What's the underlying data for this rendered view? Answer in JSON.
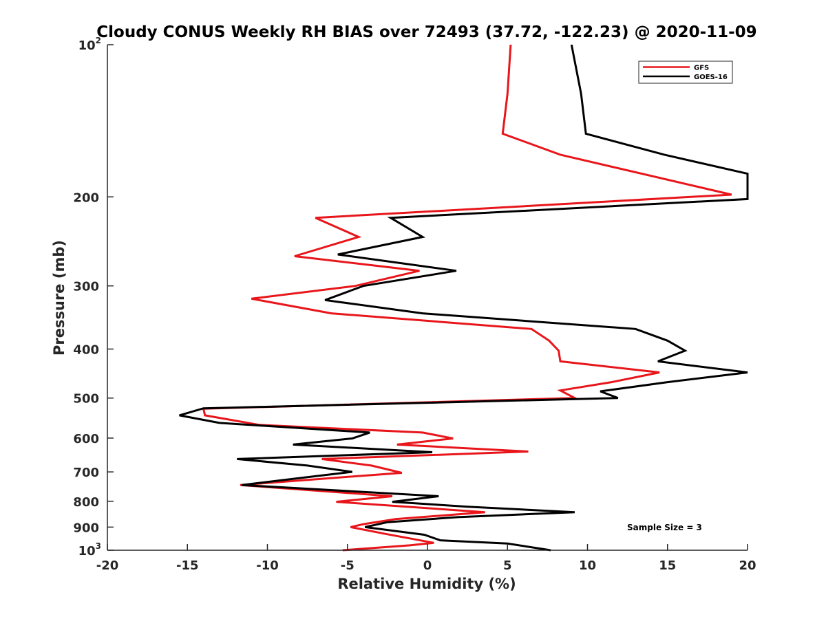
{
  "chart_data": {
    "type": "line",
    "title": "Cloudy CONUS Weekly RH BIAS over 72493 (37.72, -122.23) @ 2020-11-09",
    "xlabel": "Relative Humidity (%)",
    "ylabel": "Pressure (mb)",
    "xlim": [
      -20,
      20
    ],
    "ylim": [
      100,
      1000
    ],
    "y_scale": "log",
    "y_reversed": true,
    "grid": false,
    "legend_position": "top-right",
    "x_ticks": [
      {
        "value": -20,
        "label": "-20"
      },
      {
        "value": -15,
        "label": "-15"
      },
      {
        "value": -10,
        "label": "-10"
      },
      {
        "value": -5,
        "label": "-5"
      },
      {
        "value": 0,
        "label": "0"
      },
      {
        "value": 5,
        "label": "5"
      },
      {
        "value": 10,
        "label": "10"
      },
      {
        "value": 15,
        "label": "15"
      },
      {
        "value": 20,
        "label": "20"
      }
    ],
    "y_ticks": [
      {
        "value": 100,
        "label": "",
        "base": "10",
        "exp": "2"
      },
      {
        "value": 200,
        "label": "200"
      },
      {
        "value": 300,
        "label": "300"
      },
      {
        "value": 400,
        "label": "400"
      },
      {
        "value": 500,
        "label": "500"
      },
      {
        "value": 600,
        "label": "600"
      },
      {
        "value": 700,
        "label": "700"
      },
      {
        "value": 800,
        "label": "800"
      },
      {
        "value": 900,
        "label": "900"
      },
      {
        "value": 1000,
        "label": "",
        "base": "10",
        "exp": "3"
      }
    ],
    "annotation": "Sample Size = 3",
    "series": [
      {
        "name": "GFS",
        "color": "#e8161b",
        "points": [
          {
            "x": 5.2,
            "p": 100
          },
          {
            "x": 5.0,
            "p": 125
          },
          {
            "x": 4.7,
            "p": 150
          },
          {
            "x": 8.3,
            "p": 165
          },
          {
            "x": 19.0,
            "p": 198
          },
          {
            "x": -7.0,
            "p": 220
          },
          {
            "x": -4.3,
            "p": 240
          },
          {
            "x": -8.3,
            "p": 262
          },
          {
            "x": -0.5,
            "p": 280
          },
          {
            "x": -4.5,
            "p": 300
          },
          {
            "x": -11.0,
            "p": 318
          },
          {
            "x": -6.0,
            "p": 340
          },
          {
            "x": 6.5,
            "p": 365
          },
          {
            "x": 7.6,
            "p": 385
          },
          {
            "x": 8.2,
            "p": 403
          },
          {
            "x": 8.3,
            "p": 423
          },
          {
            "x": 14.5,
            "p": 445
          },
          {
            "x": 11.5,
            "p": 465
          },
          {
            "x": 8.3,
            "p": 483
          },
          {
            "x": 9.2,
            "p": 500
          },
          {
            "x": -14.0,
            "p": 525
          },
          {
            "x": -13.9,
            "p": 541
          },
          {
            "x": -10.5,
            "p": 565
          },
          {
            "x": -0.3,
            "p": 585
          },
          {
            "x": 1.6,
            "p": 601
          },
          {
            "x": -1.9,
            "p": 618
          },
          {
            "x": 6.3,
            "p": 638
          },
          {
            "x": -6.6,
            "p": 660
          },
          {
            "x": -3.5,
            "p": 680
          },
          {
            "x": -1.6,
            "p": 703
          },
          {
            "x": -6.0,
            "p": 720
          },
          {
            "x": -11.7,
            "p": 743
          },
          {
            "x": -2.2,
            "p": 782
          },
          {
            "x": -5.7,
            "p": 802
          },
          {
            "x": 3.6,
            "p": 841
          },
          {
            "x": -2.0,
            "p": 868
          },
          {
            "x": -4.0,
            "p": 888
          },
          {
            "x": -4.8,
            "p": 900
          },
          {
            "x": -2.5,
            "p": 930
          },
          {
            "x": 0.4,
            "p": 967
          },
          {
            "x": -1.1,
            "p": 978
          },
          {
            "x": -5.3,
            "p": 1000
          }
        ]
      },
      {
        "name": "GOES-16",
        "color": "#000000",
        "points": [
          {
            "x": 9.0,
            "p": 100
          },
          {
            "x": 9.6,
            "p": 125
          },
          {
            "x": 9.9,
            "p": 150
          },
          {
            "x": 14.8,
            "p": 165
          },
          {
            "x": 20.0,
            "p": 180
          },
          {
            "x": 20.0,
            "p": 202
          },
          {
            "x": -2.3,
            "p": 220
          },
          {
            "x": -0.3,
            "p": 240
          },
          {
            "x": -5.6,
            "p": 260
          },
          {
            "x": 1.8,
            "p": 280
          },
          {
            "x": -4.0,
            "p": 300
          },
          {
            "x": -6.4,
            "p": 320
          },
          {
            "x": -0.3,
            "p": 340
          },
          {
            "x": 13.0,
            "p": 365
          },
          {
            "x": 15.0,
            "p": 385
          },
          {
            "x": 16.1,
            "p": 403
          },
          {
            "x": 14.4,
            "p": 423
          },
          {
            "x": 20.0,
            "p": 445
          },
          {
            "x": 15.0,
            "p": 465
          },
          {
            "x": 10.8,
            "p": 485
          },
          {
            "x": 11.9,
            "p": 500
          },
          {
            "x": -14.0,
            "p": 524
          },
          {
            "x": -15.5,
            "p": 541
          },
          {
            "x": -13.0,
            "p": 560
          },
          {
            "x": -3.6,
            "p": 585
          },
          {
            "x": -4.7,
            "p": 601
          },
          {
            "x": -8.4,
            "p": 618
          },
          {
            "x": 0.3,
            "p": 640
          },
          {
            "x": -11.9,
            "p": 660
          },
          {
            "x": -7.5,
            "p": 680
          },
          {
            "x": -4.7,
            "p": 700
          },
          {
            "x": -8.0,
            "p": 720
          },
          {
            "x": -11.6,
            "p": 743
          },
          {
            "x": 0.7,
            "p": 782
          },
          {
            "x": -2.2,
            "p": 802
          },
          {
            "x": 2.5,
            "p": 820
          },
          {
            "x": 9.2,
            "p": 841
          },
          {
            "x": 1.9,
            "p": 860
          },
          {
            "x": -2.5,
            "p": 880
          },
          {
            "x": -3.9,
            "p": 900
          },
          {
            "x": -0.2,
            "p": 932
          },
          {
            "x": 0.8,
            "p": 956
          },
          {
            "x": 5.0,
            "p": 970
          },
          {
            "x": 7.7,
            "p": 1000
          }
        ]
      }
    ]
  }
}
